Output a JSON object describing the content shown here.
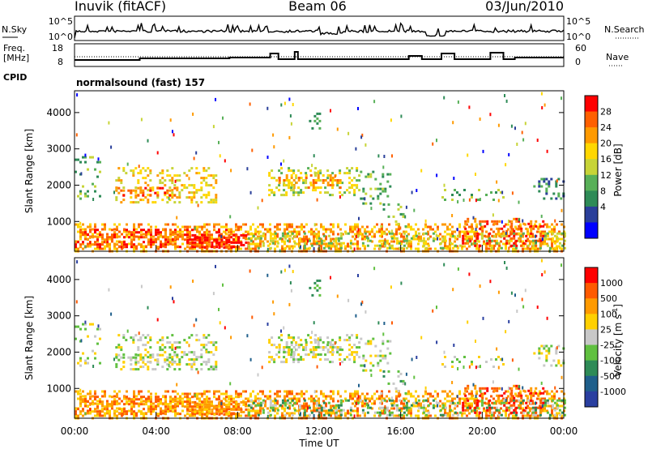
{
  "header": {
    "site": "Inuvik (fitACF)",
    "beam": "Beam 06",
    "date": "03/Jun/2010"
  },
  "panels": {
    "nsky": {
      "label": "N.Sky",
      "ticks": [
        "10^5",
        "10^0"
      ],
      "right_label": "N.Search",
      "right_ticks": [
        "10^5",
        "10^0"
      ]
    },
    "freq": {
      "label_line1": "Freq.",
      "label_line2": "[MHz]",
      "ticks": [
        "18",
        "8"
      ],
      "right_label": "Nave",
      "right_ticks": [
        "60",
        "0"
      ]
    },
    "cpid": {
      "label": "CPID",
      "text": "normalsound (fast) 157"
    }
  },
  "colors": {
    "power": [
      "#0000ff",
      "#2a3f9a",
      "#2e8b57",
      "#58b058",
      "#c7d437",
      "#ffd700",
      "#ff9a00",
      "#ff6000",
      "#ff0000"
    ],
    "velocity": [
      "#2a3fa0",
      "#1f5f8b",
      "#2e8b57",
      "#60c040",
      "#c8c8c8",
      "#ffd000",
      "#ff9a00",
      "#ff5a00",
      "#ff0000"
    ]
  },
  "chart_data": [
    {
      "type": "heatmap",
      "name": "power",
      "ylabel": "Slant Range [km]",
      "ylim": [
        180,
        4600
      ],
      "yticks": [
        "1000",
        "2000",
        "3000",
        "4000"
      ],
      "colorbar": {
        "label": "Power [dB]",
        "ticks": [
          "28",
          "24",
          "20",
          "16",
          "12",
          "8",
          "4"
        ],
        "range": [
          0,
          32
        ]
      }
    },
    {
      "type": "heatmap",
      "name": "velocity",
      "ylabel": "Slant Range [km]",
      "ylim": [
        180,
        4600
      ],
      "yticks": [
        "1000",
        "2000",
        "3000",
        "4000"
      ],
      "xlabel": "Time UT",
      "xticks": [
        "00:00",
        "04:00",
        "08:00",
        "12:00",
        "16:00",
        "20:00",
        "00:00"
      ],
      "colorbar": {
        "label": "Velocity [m s",
        "label_sup": "-1",
        "label_end": "]",
        "ticks": [
          "1000",
          "500",
          "100",
          "25",
          "-25",
          "-100",
          "-500",
          "-1000"
        ]
      }
    }
  ]
}
